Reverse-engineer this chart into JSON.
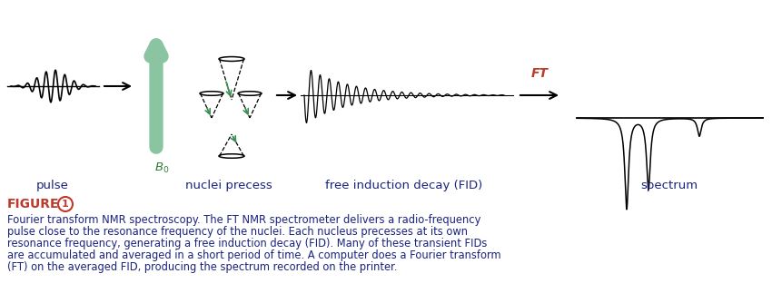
{
  "figure_label": "FIGURE",
  "figure_number": "1",
  "caption_line1": "Fourier transform NMR spectroscopy. The FT NMR spectrometer delivers a radio-frequency",
  "caption_line2": "pulse close to the resonance frequency of the nuclei. Each nucleus precesses at its own",
  "caption_line3": "resonance frequency, generating a free induction decay (FID). Many of these transient FIDs",
  "caption_line4": "are accumulated and averaged in a short period of time. A computer does a Fourier transform",
  "caption_line5": "(FT) on the averaged FID, producing the spectrum recorded on the printer.",
  "label_pulse": "pulse",
  "label_nuclei": "nuclei precess",
  "label_fid": "free induction decay (FID)",
  "label_spectrum": "spectrum",
  "label_ft": "FT",
  "label_b0": "$B_0$",
  "text_color": "#1a237e",
  "figure_label_color": "#c0392b",
  "arrow_green": "#8bc4a0",
  "b0_color": "#2e7d32",
  "black": "#000000",
  "background": "#ffffff",
  "fig_width": 8.5,
  "fig_height": 3.34,
  "dpi": 100
}
